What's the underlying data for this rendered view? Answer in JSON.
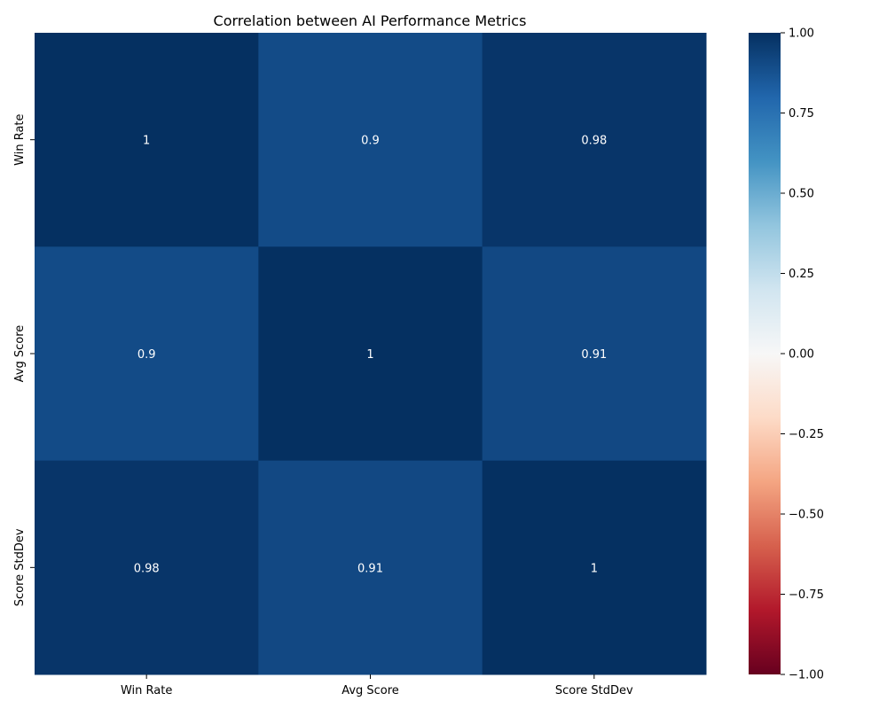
{
  "chart_data": {
    "type": "heatmap",
    "title": "Correlation between AI Performance Metrics",
    "xlabel": "",
    "ylabel": "",
    "x_categories": [
      "Win Rate",
      "Avg Score",
      "Score StdDev"
    ],
    "y_categories": [
      "Win Rate",
      "Avg Score",
      "Score StdDev"
    ],
    "values": [
      [
        1.0,
        0.9,
        0.98
      ],
      [
        0.9,
        1.0,
        0.91
      ],
      [
        0.98,
        0.91,
        1.0
      ]
    ],
    "annotations": [
      [
        "1",
        "0.9",
        "0.98"
      ],
      [
        "0.9",
        "1",
        "0.91"
      ],
      [
        "0.98",
        "0.91",
        "1"
      ]
    ],
    "colormap": "RdBu",
    "vmin": -1.0,
    "vmax": 1.0,
    "colorbar_ticks": [
      1.0,
      0.75,
      0.5,
      0.25,
      0.0,
      -0.25,
      -0.5,
      -0.75,
      -1.0
    ],
    "colorbar_tick_labels": [
      "1.00",
      "0.75",
      "0.50",
      "0.25",
      "0.00",
      "−0.25",
      "−0.50",
      "−0.75",
      "−1.00"
    ],
    "grid": false,
    "legend": "colorbar-right"
  }
}
